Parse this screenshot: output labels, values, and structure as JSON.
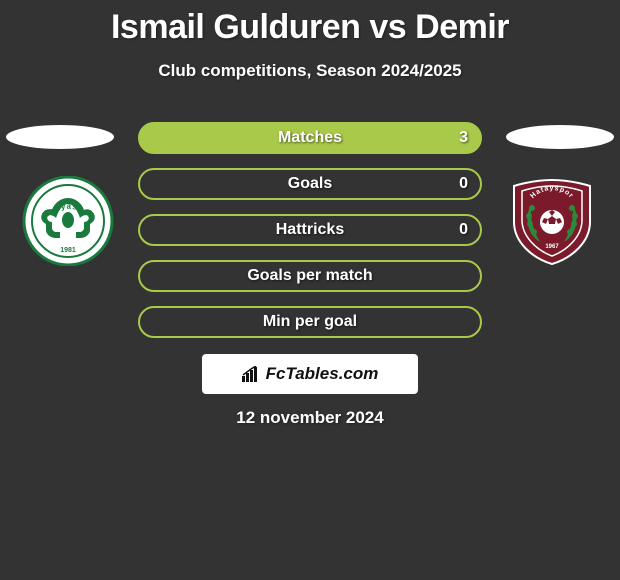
{
  "title": "Ismail Gulduren vs Demir",
  "subtitle": "Club competitions, Season 2024/2025",
  "date": "12 november 2024",
  "watermark": "FcTables.com",
  "background_color": "#333333",
  "text_color": "#ffffff",
  "team_left": {
    "name": "Konyaspor",
    "year": "1981",
    "primary_color": "#1a7a3e",
    "secondary_color": "#ffffff"
  },
  "team_right": {
    "name": "Hatayspor",
    "year": "1967",
    "primary_color": "#7a1a2a",
    "secondary_color": "#ffffff"
  },
  "stats": [
    {
      "label": "Matches",
      "value_right": "3",
      "border_color": "#a9c94a",
      "fill_color": "#a9c94a",
      "fill_pct": 100
    },
    {
      "label": "Goals",
      "value_right": "0",
      "border_color": "#a9c94a",
      "fill_color": "transparent",
      "fill_pct": 0
    },
    {
      "label": "Hattricks",
      "value_right": "0",
      "border_color": "#a9c94a",
      "fill_color": "transparent",
      "fill_pct": 0
    },
    {
      "label": "Goals per match",
      "value_right": "",
      "border_color": "#a9c94a",
      "fill_color": "transparent",
      "fill_pct": 0
    },
    {
      "label": "Min per goal",
      "value_right": "",
      "border_color": "#a9c94a",
      "fill_color": "transparent",
      "fill_pct": 0
    }
  ]
}
